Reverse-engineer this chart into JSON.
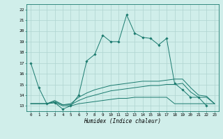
{
  "x": [
    0,
    1,
    2,
    3,
    4,
    5,
    6,
    7,
    8,
    9,
    10,
    11,
    12,
    13,
    14,
    15,
    16,
    17,
    18,
    19,
    20,
    21,
    22,
    23
  ],
  "line_main": [
    17.0,
    14.7,
    13.2,
    13.3,
    12.7,
    13.0,
    14.0,
    17.2,
    17.8,
    19.6,
    19.0,
    19.0,
    21.5,
    19.8,
    19.4,
    19.3,
    18.7,
    19.3,
    15.1,
    14.5,
    13.8,
    13.8,
    13.0,
    null
  ],
  "line_bot": [
    13.2,
    13.2,
    13.2,
    13.3,
    13.0,
    13.0,
    13.2,
    13.3,
    13.4,
    13.5,
    13.6,
    13.7,
    13.7,
    13.8,
    13.8,
    13.8,
    13.8,
    13.8,
    13.2,
    13.2,
    13.2,
    13.2,
    13.2,
    13.2
  ],
  "line_mid1": [
    13.2,
    13.2,
    13.2,
    13.4,
    13.1,
    13.1,
    13.5,
    13.8,
    14.0,
    14.2,
    14.4,
    14.5,
    14.6,
    14.7,
    14.8,
    14.9,
    14.9,
    15.0,
    15.0,
    15.1,
    14.3,
    13.8,
    13.8,
    13.2
  ],
  "line_mid2": [
    13.2,
    13.2,
    13.2,
    13.5,
    13.1,
    13.2,
    13.8,
    14.2,
    14.5,
    14.7,
    14.9,
    15.0,
    15.1,
    15.2,
    15.3,
    15.3,
    15.3,
    15.4,
    15.5,
    15.5,
    14.7,
    14.0,
    13.9,
    13.2
  ],
  "line_color": "#1a7a6e",
  "bg_color": "#d0eeea",
  "grid_color": "#aed4d0",
  "xlabel": "Humidex (Indice chaleur)",
  "yticks": [
    13,
    14,
    15,
    16,
    17,
    18,
    19,
    20,
    21,
    22
  ],
  "xlim": [
    -0.5,
    23.5
  ],
  "ylim": [
    12.5,
    22.5
  ]
}
